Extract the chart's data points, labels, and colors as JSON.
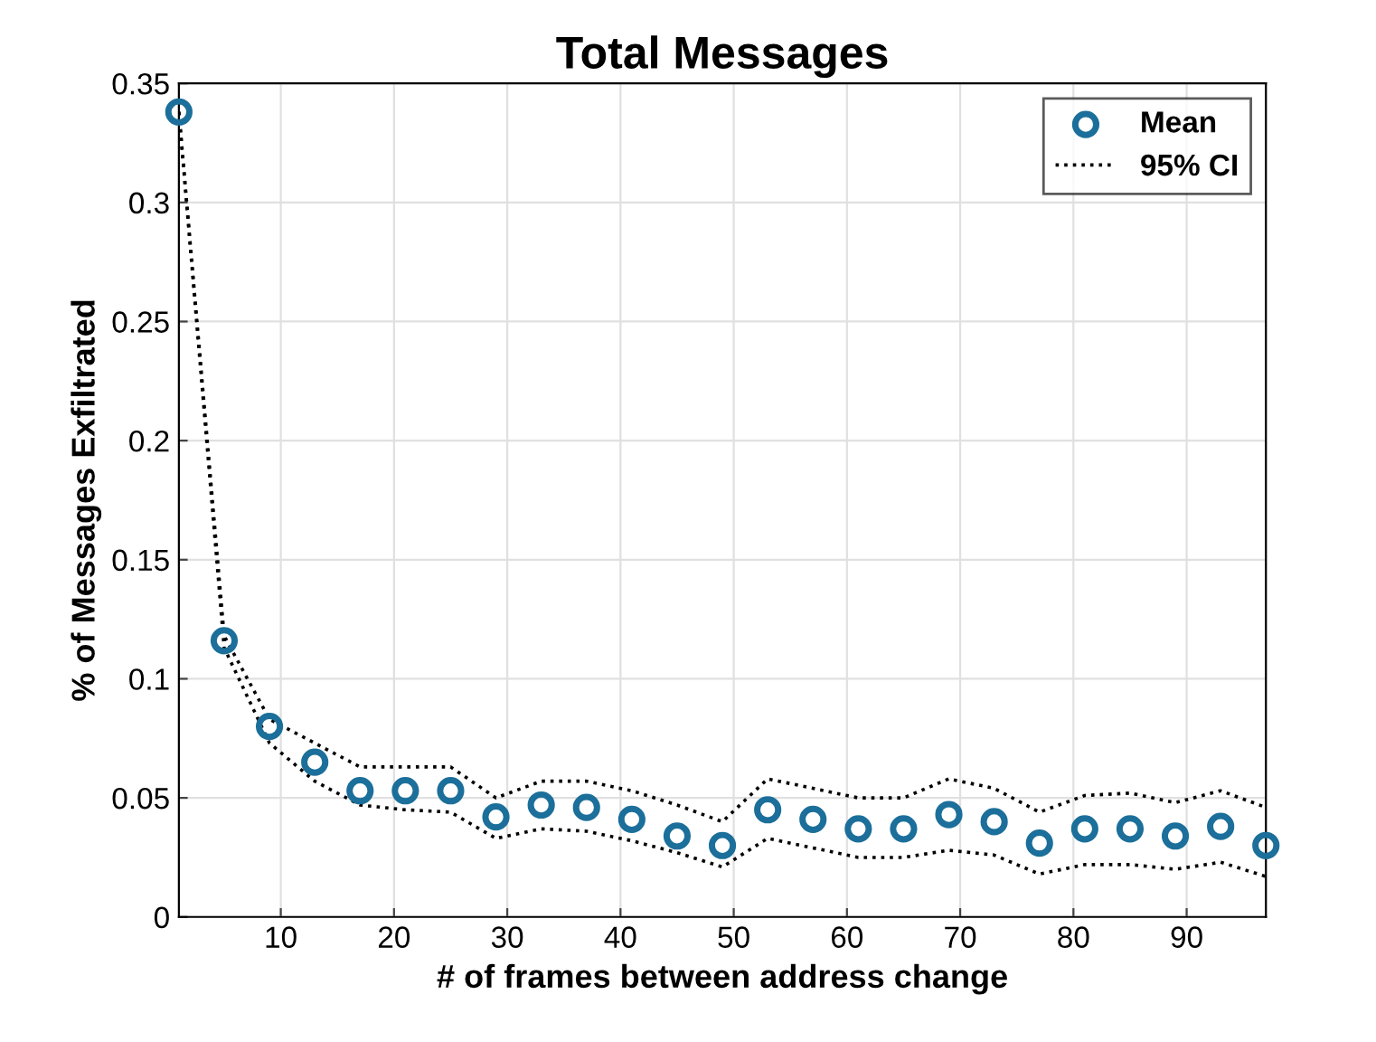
{
  "chart_data": {
    "type": "scatter",
    "title": "Total Messages",
    "xlabel": "# of frames between address change",
    "ylabel": "% of Messages Exfiltrated",
    "x": [
      1,
      5,
      9,
      13,
      17,
      21,
      25,
      29,
      33,
      37,
      41,
      45,
      49,
      53,
      57,
      61,
      65,
      69,
      73,
      77,
      81,
      85,
      89,
      93,
      97
    ],
    "series": [
      {
        "name": "Mean",
        "marker": "circle",
        "color": "#1b6f9a",
        "values": [
          0.338,
          0.116,
          0.08,
          0.065,
          0.053,
          0.053,
          0.053,
          0.042,
          0.047,
          0.046,
          0.041,
          0.034,
          0.03,
          0.045,
          0.041,
          0.037,
          0.037,
          0.043,
          0.04,
          0.031,
          0.037,
          0.037,
          0.034,
          0.038,
          0.03
        ]
      },
      {
        "name": "95% CI",
        "type": "line",
        "line_style": "dotted",
        "color": "#000000",
        "values": [
          0.338,
          0.118,
          0.083,
          0.073,
          0.063,
          0.063,
          0.063,
          0.05,
          0.057,
          0.057,
          0.053,
          0.047,
          0.04,
          0.058,
          0.054,
          0.05,
          0.05,
          0.058,
          0.054,
          0.044,
          0.051,
          0.052,
          0.048,
          0.053,
          0.046
        ]
      },
      {
        "type": "line",
        "line_style": "dotted",
        "color": "#000000",
        "values": [
          0.338,
          0.113,
          0.073,
          0.057,
          0.047,
          0.045,
          0.044,
          0.033,
          0.037,
          0.036,
          0.032,
          0.027,
          0.021,
          0.033,
          0.029,
          0.025,
          0.025,
          0.028,
          0.026,
          0.018,
          0.022,
          0.022,
          0.02,
          0.023,
          0.017
        ]
      }
    ],
    "xlim": [
      1,
      97
    ],
    "xticks": [
      10,
      20,
      30,
      40,
      50,
      60,
      70,
      80,
      90
    ],
    "ylim": [
      0,
      0.35
    ],
    "yticks": [
      0,
      0.05,
      0.1,
      0.15,
      0.2,
      0.25,
      0.3,
      0.35
    ],
    "grid": true,
    "legend": "top right"
  }
}
